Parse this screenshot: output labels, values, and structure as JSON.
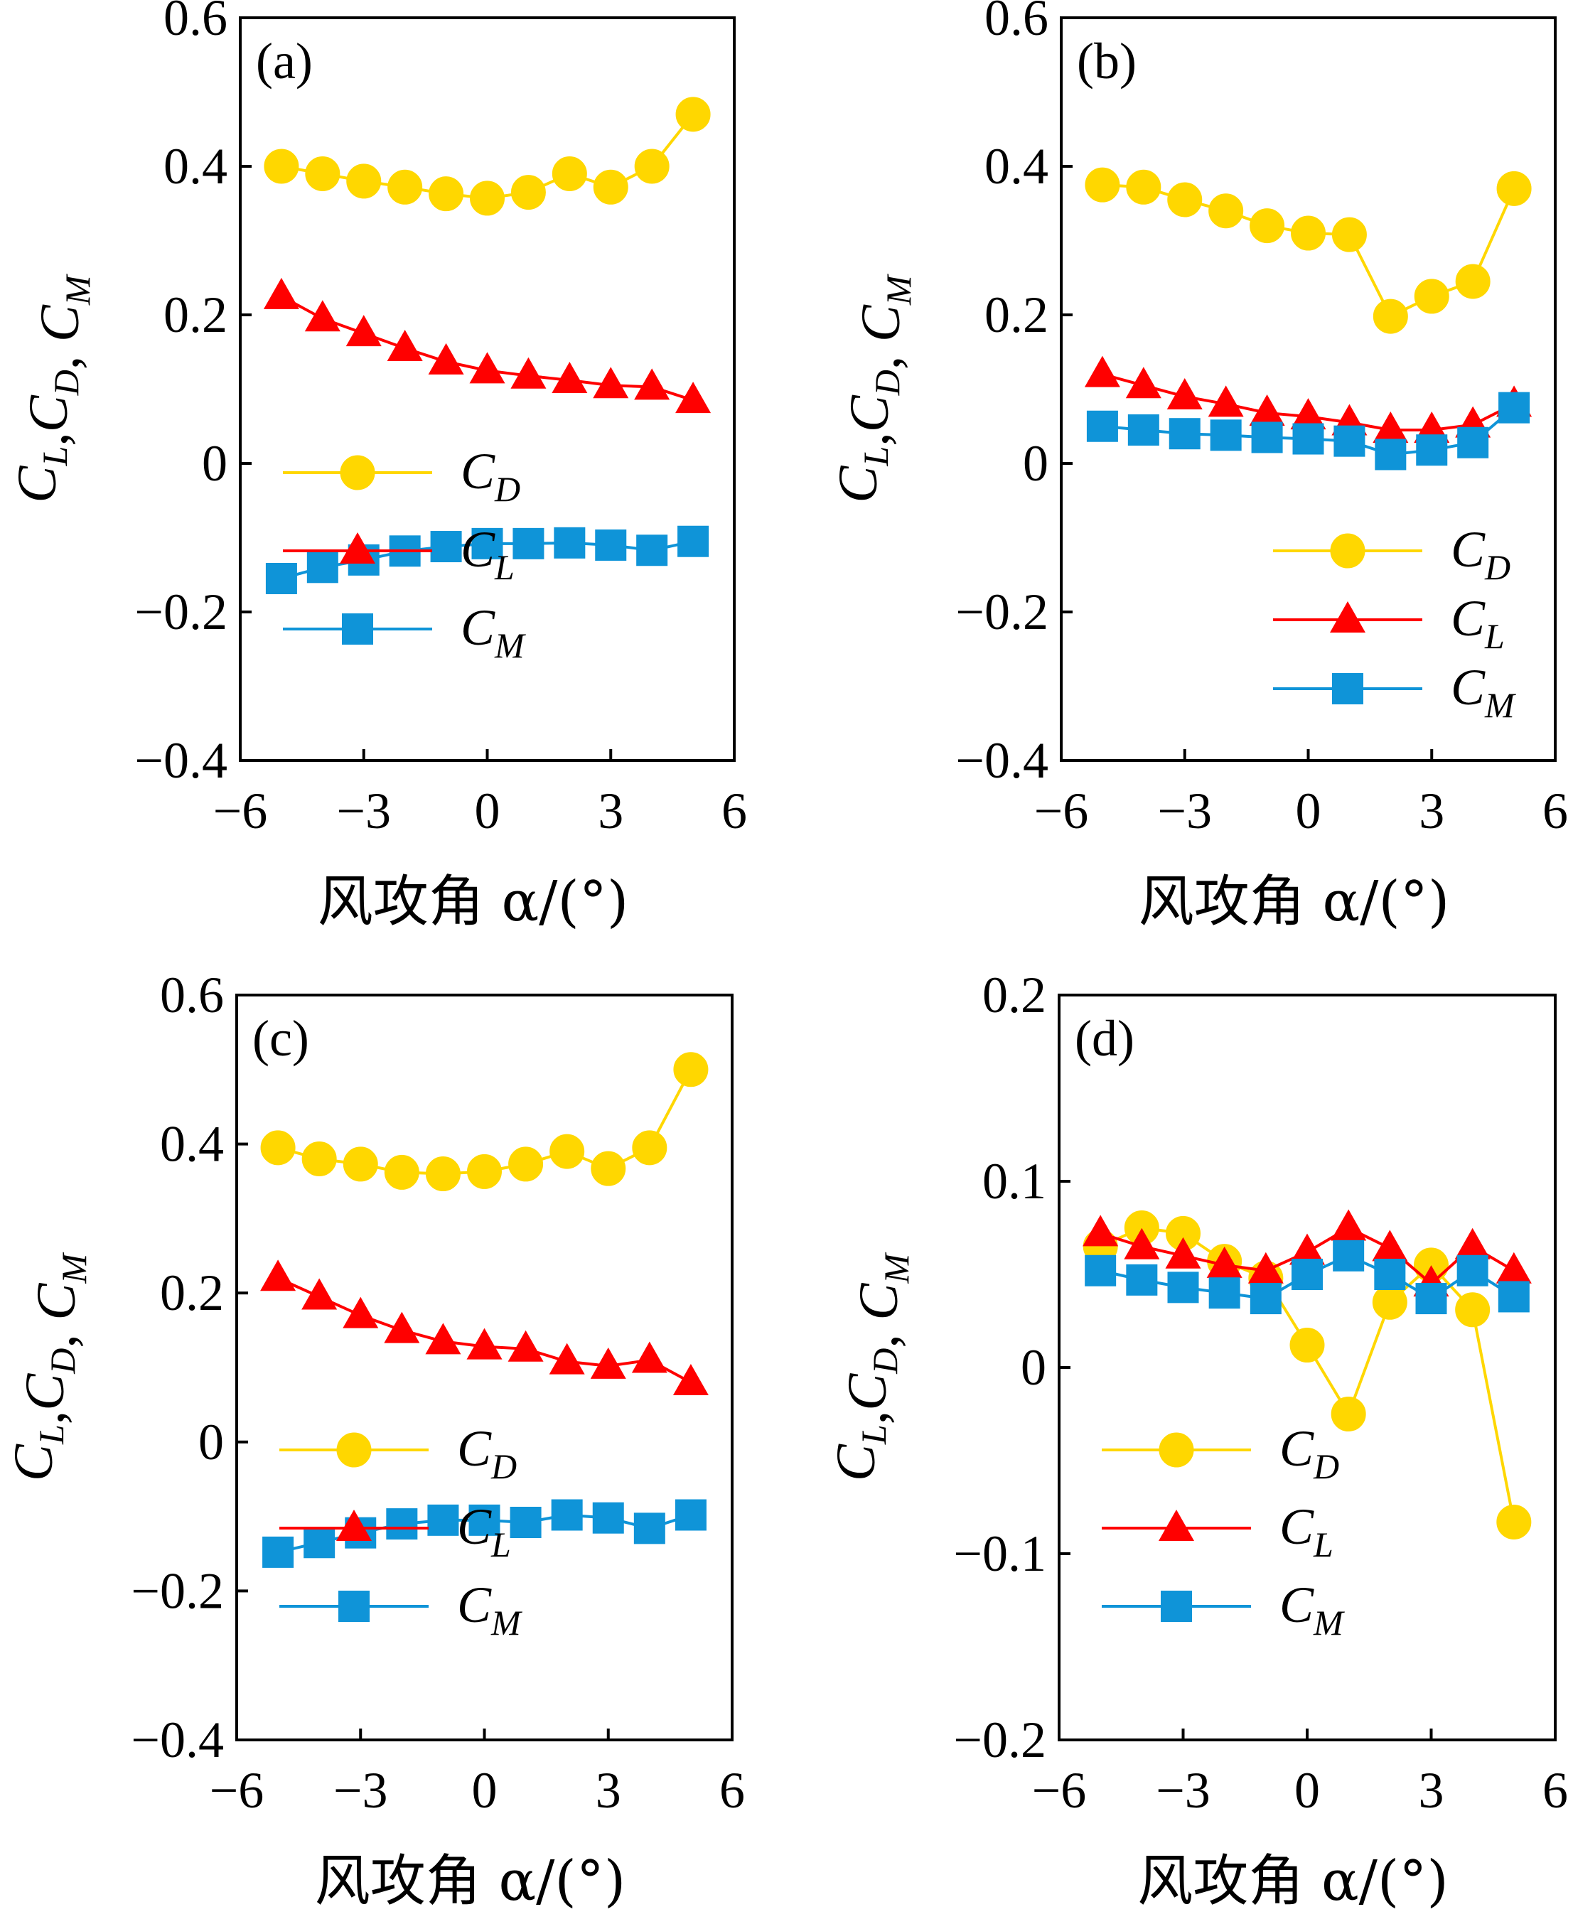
{
  "series_style": {
    "CD": {
      "color": "#FFD700",
      "marker": "circle"
    },
    "CL": {
      "color": "#FF0000",
      "marker": "triangle"
    },
    "CM": {
      "color": "#0F94D8",
      "marker": "square"
    }
  },
  "chart_data": [
    {
      "type": "line",
      "label": "(a)",
      "x": [
        -5,
        -4,
        -3,
        -2,
        -1,
        0,
        1,
        2,
        3,
        4,
        5
      ],
      "xlim": [
        -6,
        6
      ],
      "xticks": [
        -6,
        -3,
        0,
        3,
        6
      ],
      "xtick_labels": [
        "−6",
        "−3",
        "0",
        "3",
        "6"
      ],
      "ylim": [
        -0.4,
        0.6
      ],
      "yticks": [
        -0.4,
        -0.2,
        0,
        0.2,
        0.4,
        0.6
      ],
      "ytick_labels": [
        "−0.4",
        "−0.2",
        "0",
        "0.2",
        "0.4",
        "0.6"
      ],
      "xlabel": "风攻角 α/(°)",
      "ylabel": "CL,CD, CM",
      "legend_position": "lower-left",
      "series": [
        {
          "key": "CD",
          "name": "CD",
          "values": [
            0.4,
            0.39,
            0.38,
            0.372,
            0.363,
            0.357,
            0.365,
            0.39,
            0.372,
            0.4,
            0.47
          ]
        },
        {
          "key": "CL",
          "name": "CL",
          "values": [
            0.225,
            0.195,
            0.175,
            0.155,
            0.137,
            0.125,
            0.118,
            0.112,
            0.105,
            0.103,
            0.085
          ]
        },
        {
          "key": "CM",
          "name": "CM",
          "values": [
            -0.155,
            -0.14,
            -0.13,
            -0.118,
            -0.112,
            -0.108,
            -0.108,
            -0.107,
            -0.11,
            -0.117,
            -0.105
          ]
        }
      ]
    },
    {
      "type": "line",
      "label": "(b)",
      "x": [
        -5,
        -4,
        -3,
        -2,
        -1,
        0,
        1,
        2,
        3,
        4,
        5
      ],
      "xlim": [
        -6,
        6
      ],
      "xticks": [
        -6,
        -3,
        0,
        3,
        6
      ],
      "xtick_labels": [
        "−6",
        "−3",
        "0",
        "3",
        "6"
      ],
      "ylim": [
        -0.4,
        0.6
      ],
      "yticks": [
        -0.4,
        -0.2,
        0,
        0.2,
        0.4,
        0.6
      ],
      "ytick_labels": [
        "−0.4",
        "−0.2",
        "0",
        "0.2",
        "0.4",
        "0.6"
      ],
      "xlabel": "风攻角 α/(°)",
      "ylabel": "CL,CD, CM",
      "legend_position": "lower-right",
      "series": [
        {
          "key": "CD",
          "name": "CD",
          "values": [
            0.375,
            0.372,
            0.355,
            0.34,
            0.32,
            0.31,
            0.308,
            0.198,
            0.225,
            0.245,
            0.37
          ]
        },
        {
          "key": "CL",
          "name": "CL",
          "values": [
            0.12,
            0.105,
            0.09,
            0.08,
            0.068,
            0.063,
            0.055,
            0.045,
            0.045,
            0.052,
            0.08
          ]
        },
        {
          "key": "CM",
          "name": "CM",
          "values": [
            0.05,
            0.045,
            0.04,
            0.038,
            0.035,
            0.033,
            0.03,
            0.012,
            0.018,
            0.028,
            0.075
          ]
        }
      ]
    },
    {
      "type": "line",
      "label": "(c)",
      "x": [
        -5,
        -4,
        -3,
        -2,
        -1,
        0,
        1,
        2,
        3,
        4,
        5
      ],
      "xlim": [
        -6,
        6
      ],
      "xticks": [
        -6,
        -3,
        0,
        3,
        6
      ],
      "xtick_labels": [
        "−6",
        "−3",
        "0",
        "3",
        "6"
      ],
      "ylim": [
        -0.4,
        0.6
      ],
      "yticks": [
        -0.4,
        -0.2,
        0,
        0.2,
        0.4,
        0.6
      ],
      "ytick_labels": [
        "−0.4",
        "−0.2",
        "0",
        "0.2",
        "0.4",
        "0.6"
      ],
      "xlabel": "风攻角 α/(°)",
      "ylabel": "CL,CD, CM",
      "legend_position": "lower-left",
      "series": [
        {
          "key": "CD",
          "name": "CD",
          "values": [
            0.395,
            0.38,
            0.373,
            0.362,
            0.36,
            0.363,
            0.373,
            0.39,
            0.367,
            0.395,
            0.5
          ]
        },
        {
          "key": "CL",
          "name": "CL",
          "values": [
            0.22,
            0.195,
            0.17,
            0.15,
            0.135,
            0.128,
            0.125,
            0.108,
            0.102,
            0.11,
            0.08
          ]
        },
        {
          "key": "CM",
          "name": "CM",
          "values": [
            -0.148,
            -0.135,
            -0.122,
            -0.11,
            -0.105,
            -0.105,
            -0.108,
            -0.098,
            -0.102,
            -0.116,
            -0.098
          ]
        }
      ]
    },
    {
      "type": "line",
      "label": "(d)",
      "x": [
        -5,
        -4,
        -3,
        -2,
        -1,
        0,
        1,
        2,
        3,
        4,
        5
      ],
      "xlim": [
        -6,
        6
      ],
      "xticks": [
        -6,
        -3,
        0,
        3,
        6
      ],
      "xtick_labels": [
        "−6",
        "−3",
        "0",
        "3",
        "6"
      ],
      "ylim": [
        -0.2,
        0.2
      ],
      "yticks": [
        -0.2,
        -0.1,
        0,
        0.1,
        0.2
      ],
      "ytick_labels": [
        "−0.2",
        "−0.1",
        "0",
        "0.1",
        "0.2"
      ],
      "xlabel": "风攻角 α/(°)",
      "ylabel": "CL,CD, CM",
      "legend_position": "lower-left",
      "series": [
        {
          "key": "CD",
          "name": "CD",
          "values": [
            0.065,
            0.075,
            0.072,
            0.057,
            0.048,
            0.012,
            -0.025,
            0.035,
            0.055,
            0.031,
            -0.083
          ]
        },
        {
          "key": "CL",
          "name": "CL",
          "values": [
            0.072,
            0.065,
            0.06,
            0.055,
            0.052,
            0.062,
            0.075,
            0.064,
            0.045,
            0.065,
            0.052
          ]
        },
        {
          "key": "CM",
          "name": "CM",
          "values": [
            0.052,
            0.047,
            0.043,
            0.04,
            0.037,
            0.05,
            0.06,
            0.05,
            0.037,
            0.052,
            0.038
          ]
        }
      ]
    }
  ]
}
